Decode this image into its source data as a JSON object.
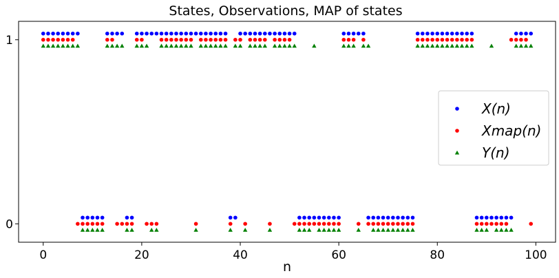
{
  "chart_data": {
    "type": "scatter",
    "title": "States, Observations, MAP of states",
    "xlabel": "n",
    "ylabel": "",
    "xlim": [
      -5,
      104
    ],
    "ylim": [
      -0.1,
      1.1
    ],
    "x_ticks": [
      0,
      20,
      40,
      60,
      80,
      100
    ],
    "y_ticks": [
      0,
      1
    ],
    "grid": false,
    "legend_position": "right",
    "x": [
      0,
      1,
      2,
      3,
      4,
      5,
      6,
      7,
      8,
      9,
      10,
      11,
      12,
      13,
      14,
      15,
      16,
      17,
      18,
      19,
      20,
      21,
      22,
      23,
      24,
      25,
      26,
      27,
      28,
      29,
      30,
      31,
      32,
      33,
      34,
      35,
      36,
      37,
      38,
      39,
      40,
      41,
      42,
      43,
      44,
      45,
      46,
      47,
      48,
      49,
      50,
      51,
      52,
      53,
      54,
      55,
      56,
      57,
      58,
      59,
      60,
      61,
      62,
      63,
      64,
      65,
      66,
      67,
      68,
      69,
      70,
      71,
      72,
      73,
      74,
      75,
      76,
      77,
      78,
      79,
      80,
      81,
      82,
      83,
      84,
      85,
      86,
      87,
      88,
      89,
      90,
      91,
      92,
      93,
      94,
      95,
      96,
      97,
      98,
      99
    ],
    "series": [
      {
        "name": "X(n)",
        "marker": "circle",
        "color": "#0000ff",
        "offset_index": 1,
        "values": [
          1,
          1,
          1,
          1,
          1,
          1,
          1,
          1,
          0,
          0,
          0,
          0,
          0,
          1,
          1,
          1,
          1,
          0,
          0,
          1,
          1,
          1,
          1,
          1,
          1,
          1,
          1,
          1,
          1,
          1,
          1,
          1,
          1,
          1,
          1,
          1,
          1,
          1,
          0,
          0,
          1,
          1,
          1,
          1,
          1,
          1,
          1,
          1,
          1,
          1,
          1,
          1,
          0,
          0,
          0,
          0,
          0,
          0,
          0,
          0,
          0,
          1,
          1,
          1,
          1,
          1,
          0,
          0,
          0,
          0,
          0,
          0,
          0,
          0,
          0,
          0,
          1,
          1,
          1,
          1,
          1,
          1,
          1,
          1,
          1,
          1,
          1,
          1,
          0,
          0,
          0,
          0,
          0,
          0,
          0,
          0,
          1,
          1,
          1,
          1
        ]
      },
      {
        "name": "Xmap(n)",
        "marker": "circle",
        "color": "#ff0000",
        "offset_index": 0,
        "values": [
          1,
          1,
          1,
          1,
          1,
          1,
          1,
          0,
          0,
          0,
          0,
          0,
          0,
          1,
          1,
          0,
          0,
          0,
          0,
          1,
          1,
          0,
          0,
          0,
          1,
          1,
          1,
          1,
          1,
          1,
          1,
          0,
          1,
          1,
          1,
          1,
          1,
          1,
          0,
          1,
          1,
          0,
          1,
          1,
          1,
          1,
          0,
          1,
          1,
          1,
          1,
          0,
          0,
          0,
          0,
          0,
          0,
          0,
          0,
          0,
          0,
          1,
          1,
          1,
          0,
          1,
          0,
          0,
          0,
          0,
          0,
          0,
          0,
          0,
          0,
          0,
          1,
          1,
          1,
          1,
          1,
          1,
          1,
          1,
          1,
          1,
          1,
          1,
          0,
          0,
          0,
          0,
          0,
          0,
          0,
          1,
          1,
          1,
          1,
          0
        ]
      },
      {
        "name": "Y(n)",
        "marker": "triangle",
        "color": "#008000",
        "offset_index": -1,
        "values": [
          1,
          1,
          1,
          1,
          1,
          1,
          1,
          1,
          0,
          0,
          0,
          0,
          0,
          1,
          1,
          1,
          1,
          0,
          0,
          1,
          1,
          1,
          0,
          0,
          1,
          1,
          1,
          1,
          1,
          1,
          1,
          0,
          1,
          1,
          1,
          1,
          1,
          1,
          0,
          1,
          1,
          0,
          1,
          1,
          1,
          1,
          0,
          1,
          1,
          1,
          1,
          1,
          0,
          0,
          0,
          1,
          0,
          0,
          0,
          0,
          0,
          1,
          1,
          1,
          0,
          1,
          1,
          0,
          0,
          0,
          0,
          0,
          0,
          0,
          0,
          0,
          1,
          1,
          1,
          1,
          1,
          1,
          1,
          1,
          1,
          1,
          1,
          1,
          0,
          0,
          0,
          1,
          0,
          0,
          0,
          0,
          1,
          1,
          1,
          1
        ]
      }
    ]
  }
}
